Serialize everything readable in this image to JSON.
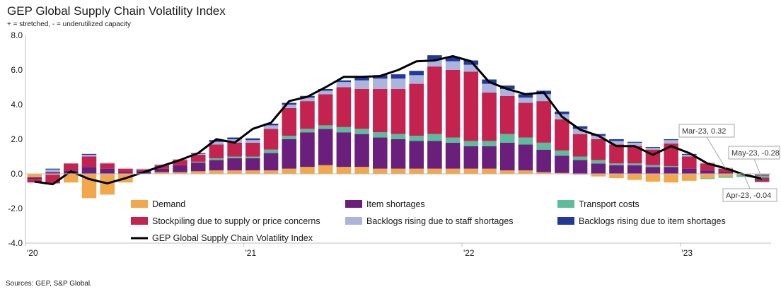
{
  "header": {
    "title": "GEP Global Supply Chain Volatility Index",
    "subtitle": "+ = stretched, - = underutilized capacity"
  },
  "footer": {
    "source": "Sources: GEP, S&P Global."
  },
  "colors": {
    "demand": "#f2a84a",
    "item_shortages": "#6b1f7c",
    "transport": "#5bbd9c",
    "stockpiling": "#c4234f",
    "staff_backlogs": "#aab4dc",
    "item_backlogs": "#1f3a9c",
    "index_line": "#000000"
  },
  "chart_data": {
    "type": "bar",
    "stacked": true,
    "title": "GEP Global Supply Chain Volatility Index",
    "ylim": [
      -4,
      8
    ],
    "yticks": [
      "-4.0",
      "-2.0",
      "0.0",
      "2.0",
      "4.0",
      "6.0",
      "8.0"
    ],
    "x_tick_labels": [
      {
        "label": "'20",
        "index": 0
      },
      {
        "label": "'21",
        "index": 12
      },
      {
        "label": "'22",
        "index": 24
      },
      {
        "label": "'23",
        "index": 36
      }
    ],
    "categories": [
      "Jan-20",
      "Feb-20",
      "Mar-20",
      "Apr-20",
      "May-20",
      "Jun-20",
      "Jul-20",
      "Aug-20",
      "Sep-20",
      "Oct-20",
      "Nov-20",
      "Dec-20",
      "Jan-21",
      "Feb-21",
      "Mar-21",
      "Apr-21",
      "May-21",
      "Jun-21",
      "Jul-21",
      "Aug-21",
      "Sep-21",
      "Oct-21",
      "Nov-21",
      "Dec-21",
      "Jan-22",
      "Feb-22",
      "Mar-22",
      "Apr-22",
      "May-22",
      "Jun-22",
      "Jul-22",
      "Aug-22",
      "Sep-22",
      "Oct-22",
      "Nov-22",
      "Dec-22",
      "Jan-23",
      "Feb-23",
      "Mar-23",
      "Apr-23",
      "May-23"
    ],
    "series": [
      {
        "name": "Demand",
        "color_key": "demand",
        "values": [
          -0.2,
          -0.05,
          -0.5,
          -1.4,
          -1.2,
          -0.5,
          0.0,
          0.1,
          0.1,
          0.15,
          0.2,
          0.2,
          0.2,
          0.2,
          0.3,
          0.4,
          0.5,
          0.4,
          0.4,
          0.3,
          0.3,
          0.3,
          0.3,
          0.3,
          0.3,
          0.3,
          0.2,
          0.2,
          0.1,
          0.05,
          -0.05,
          -0.15,
          -0.25,
          -0.35,
          -0.45,
          -0.5,
          -0.4,
          -0.25,
          -0.15,
          -0.08,
          -0.05
        ]
      },
      {
        "name": "Item shortages",
        "color_key": "item_shortages",
        "values": [
          -0.1,
          0.1,
          0.2,
          0.4,
          0.3,
          0.1,
          0.15,
          0.2,
          0.4,
          0.5,
          0.6,
          0.7,
          0.7,
          1.0,
          1.7,
          2.0,
          2.1,
          2.0,
          1.9,
          1.8,
          1.7,
          1.6,
          1.6,
          1.5,
          1.3,
          1.3,
          1.6,
          1.5,
          1.3,
          1.0,
          0.8,
          0.6,
          0.5,
          0.5,
          0.4,
          0.4,
          0.3,
          0.2,
          0.1,
          0.0,
          -0.05
        ]
      },
      {
        "name": "Transport costs",
        "color_key": "transport",
        "values": [
          0.0,
          0.0,
          0.0,
          0.0,
          0.0,
          0.0,
          0.0,
          0.0,
          0.0,
          0.05,
          0.1,
          0.1,
          0.1,
          0.2,
          0.2,
          0.2,
          0.2,
          0.3,
          0.3,
          0.3,
          0.3,
          0.3,
          0.4,
          0.3,
          0.3,
          0.3,
          0.5,
          0.4,
          0.4,
          0.3,
          0.2,
          0.2,
          0.1,
          0.1,
          0.1,
          0.05,
          0.0,
          -0.05,
          -0.08,
          -0.1,
          -0.12
        ]
      },
      {
        "name": "Stockpiling due to supply or price concerns",
        "color_key": "stockpiling",
        "values": [
          -0.2,
          -0.5,
          0.4,
          0.6,
          0.3,
          0.2,
          0.1,
          0.2,
          0.3,
          0.4,
          0.8,
          0.8,
          0.8,
          1.2,
          1.6,
          1.6,
          1.8,
          2.3,
          2.3,
          2.5,
          2.6,
          3.0,
          3.9,
          3.9,
          4.0,
          2.8,
          2.2,
          2.0,
          2.4,
          1.8,
          1.3,
          1.2,
          1.1,
          1.0,
          0.9,
          1.3,
          0.7,
          0.4,
          0.2,
          0.0,
          -0.2
        ]
      },
      {
        "name": "Backlogs rising due to staff shortages",
        "color_key": "staff_backlogs",
        "values": [
          0.0,
          0.15,
          0.0,
          0.1,
          0.05,
          0.0,
          0.05,
          0.05,
          0.05,
          0.05,
          0.15,
          0.2,
          0.15,
          0.2,
          0.2,
          0.2,
          0.2,
          0.3,
          0.5,
          0.6,
          0.6,
          0.5,
          0.4,
          0.5,
          0.4,
          0.5,
          0.4,
          0.3,
          0.4,
          0.3,
          0.3,
          0.2,
          0.2,
          0.2,
          0.1,
          0.2,
          0.1,
          0.05,
          0.05,
          0.0,
          0.0
        ]
      },
      {
        "name": "Backlogs rising due to item shortages",
        "color_key": "item_backlogs",
        "values": [
          0.0,
          0.05,
          0.0,
          0.05,
          0.0,
          0.0,
          0.0,
          0.0,
          0.0,
          0.05,
          0.1,
          0.1,
          0.1,
          0.1,
          0.1,
          0.1,
          0.1,
          0.1,
          0.15,
          0.2,
          0.25,
          0.25,
          0.25,
          0.25,
          0.25,
          0.25,
          0.2,
          0.2,
          0.2,
          0.15,
          0.15,
          0.1,
          0.1,
          0.05,
          0.05,
          0.05,
          0.05,
          0.0,
          0.0,
          0.0,
          -0.05
        ]
      }
    ],
    "line": {
      "name": "GEP Global Supply Chain Volatility Index",
      "color_key": "index_line",
      "values": [
        -0.45,
        -0.6,
        0.15,
        -0.3,
        -0.55,
        -0.25,
        0.1,
        0.45,
        0.8,
        1.2,
        2.0,
        1.8,
        2.6,
        2.95,
        4.2,
        4.45,
        5.0,
        5.6,
        5.6,
        5.65,
        6.0,
        6.5,
        6.55,
        6.8,
        6.5,
        5.3,
        4.9,
        4.6,
        4.7,
        3.3,
        2.55,
        2.2,
        1.6,
        1.6,
        1.1,
        1.6,
        1.2,
        0.6,
        0.32,
        -0.04,
        -0.28
      ]
    },
    "legend": [
      {
        "label": "Demand",
        "type": "box",
        "color_key": "demand"
      },
      {
        "label": "Item shortages",
        "type": "box",
        "color_key": "item_shortages"
      },
      {
        "label": "Transport costs",
        "type": "box",
        "color_key": "transport"
      },
      {
        "label": "Stockpiling due to supply or price concerns",
        "type": "box",
        "color_key": "stockpiling"
      },
      {
        "label": "Backlogs rising due to staff shortages",
        "type": "box",
        "color_key": "staff_backlogs"
      },
      {
        "label": "Backlogs rising due to item shortages",
        "type": "box",
        "color_key": "item_backlogs"
      },
      {
        "label": "GEP Global Supply Chain Volatility Index",
        "type": "line",
        "color_key": "index_line"
      }
    ],
    "annotations": [
      {
        "text": "Mar-23, 0.32",
        "index": 38,
        "value": 0.32
      },
      {
        "text": "May-23, -0.28",
        "index": 40,
        "value": -0.28
      },
      {
        "text": "Apr-23, -0.04",
        "index": 39,
        "value": -0.04
      }
    ]
  }
}
